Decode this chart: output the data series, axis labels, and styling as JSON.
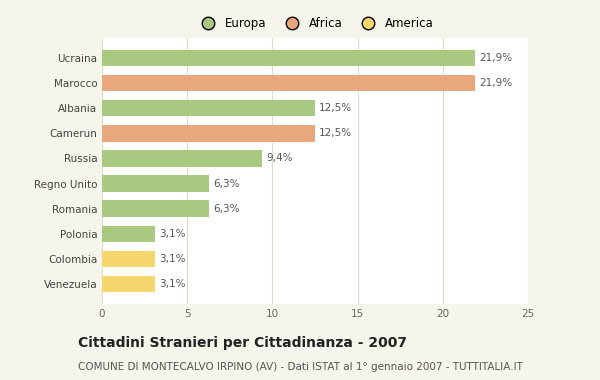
{
  "categories": [
    "Venezuela",
    "Colombia",
    "Polonia",
    "Romania",
    "Regno Unito",
    "Russia",
    "Camerun",
    "Albania",
    "Marocco",
    "Ucraina"
  ],
  "values": [
    3.1,
    3.1,
    3.1,
    6.3,
    6.3,
    9.4,
    12.5,
    12.5,
    21.9,
    21.9
  ],
  "bar_colors": [
    "#f5d76e",
    "#f5d76e",
    "#a8c97f",
    "#a8c97f",
    "#a8c97f",
    "#a8c97f",
    "#e8a87c",
    "#a8c97f",
    "#e8a87c",
    "#a8c97f"
  ],
  "labels": [
    "3,1%",
    "3,1%",
    "3,1%",
    "6,3%",
    "6,3%",
    "9,4%",
    "12,5%",
    "12,5%",
    "21,9%",
    "21,9%"
  ],
  "legend_labels": [
    "Europa",
    "Africa",
    "America"
  ],
  "legend_colors": [
    "#a8c97f",
    "#e8a87c",
    "#f5d76e"
  ],
  "title": "Cittadini Stranieri per Cittadinanza - 2007",
  "subtitle": "COMUNE DI MONTECALVO IRPINO (AV) - Dati ISTAT al 1° gennaio 2007 - TUTTITALIA.IT",
  "xlim": [
    0,
    25
  ],
  "xticks": [
    0,
    5,
    10,
    15,
    20,
    25
  ],
  "background_color": "#f5f5eb",
  "plot_bg_color": "#ffffff",
  "grid_color": "#ddddcc",
  "bar_height": 0.65,
  "title_fontsize": 10,
  "subtitle_fontsize": 7.5,
  "label_fontsize": 7.5,
  "tick_fontsize": 7.5,
  "legend_fontsize": 8.5
}
